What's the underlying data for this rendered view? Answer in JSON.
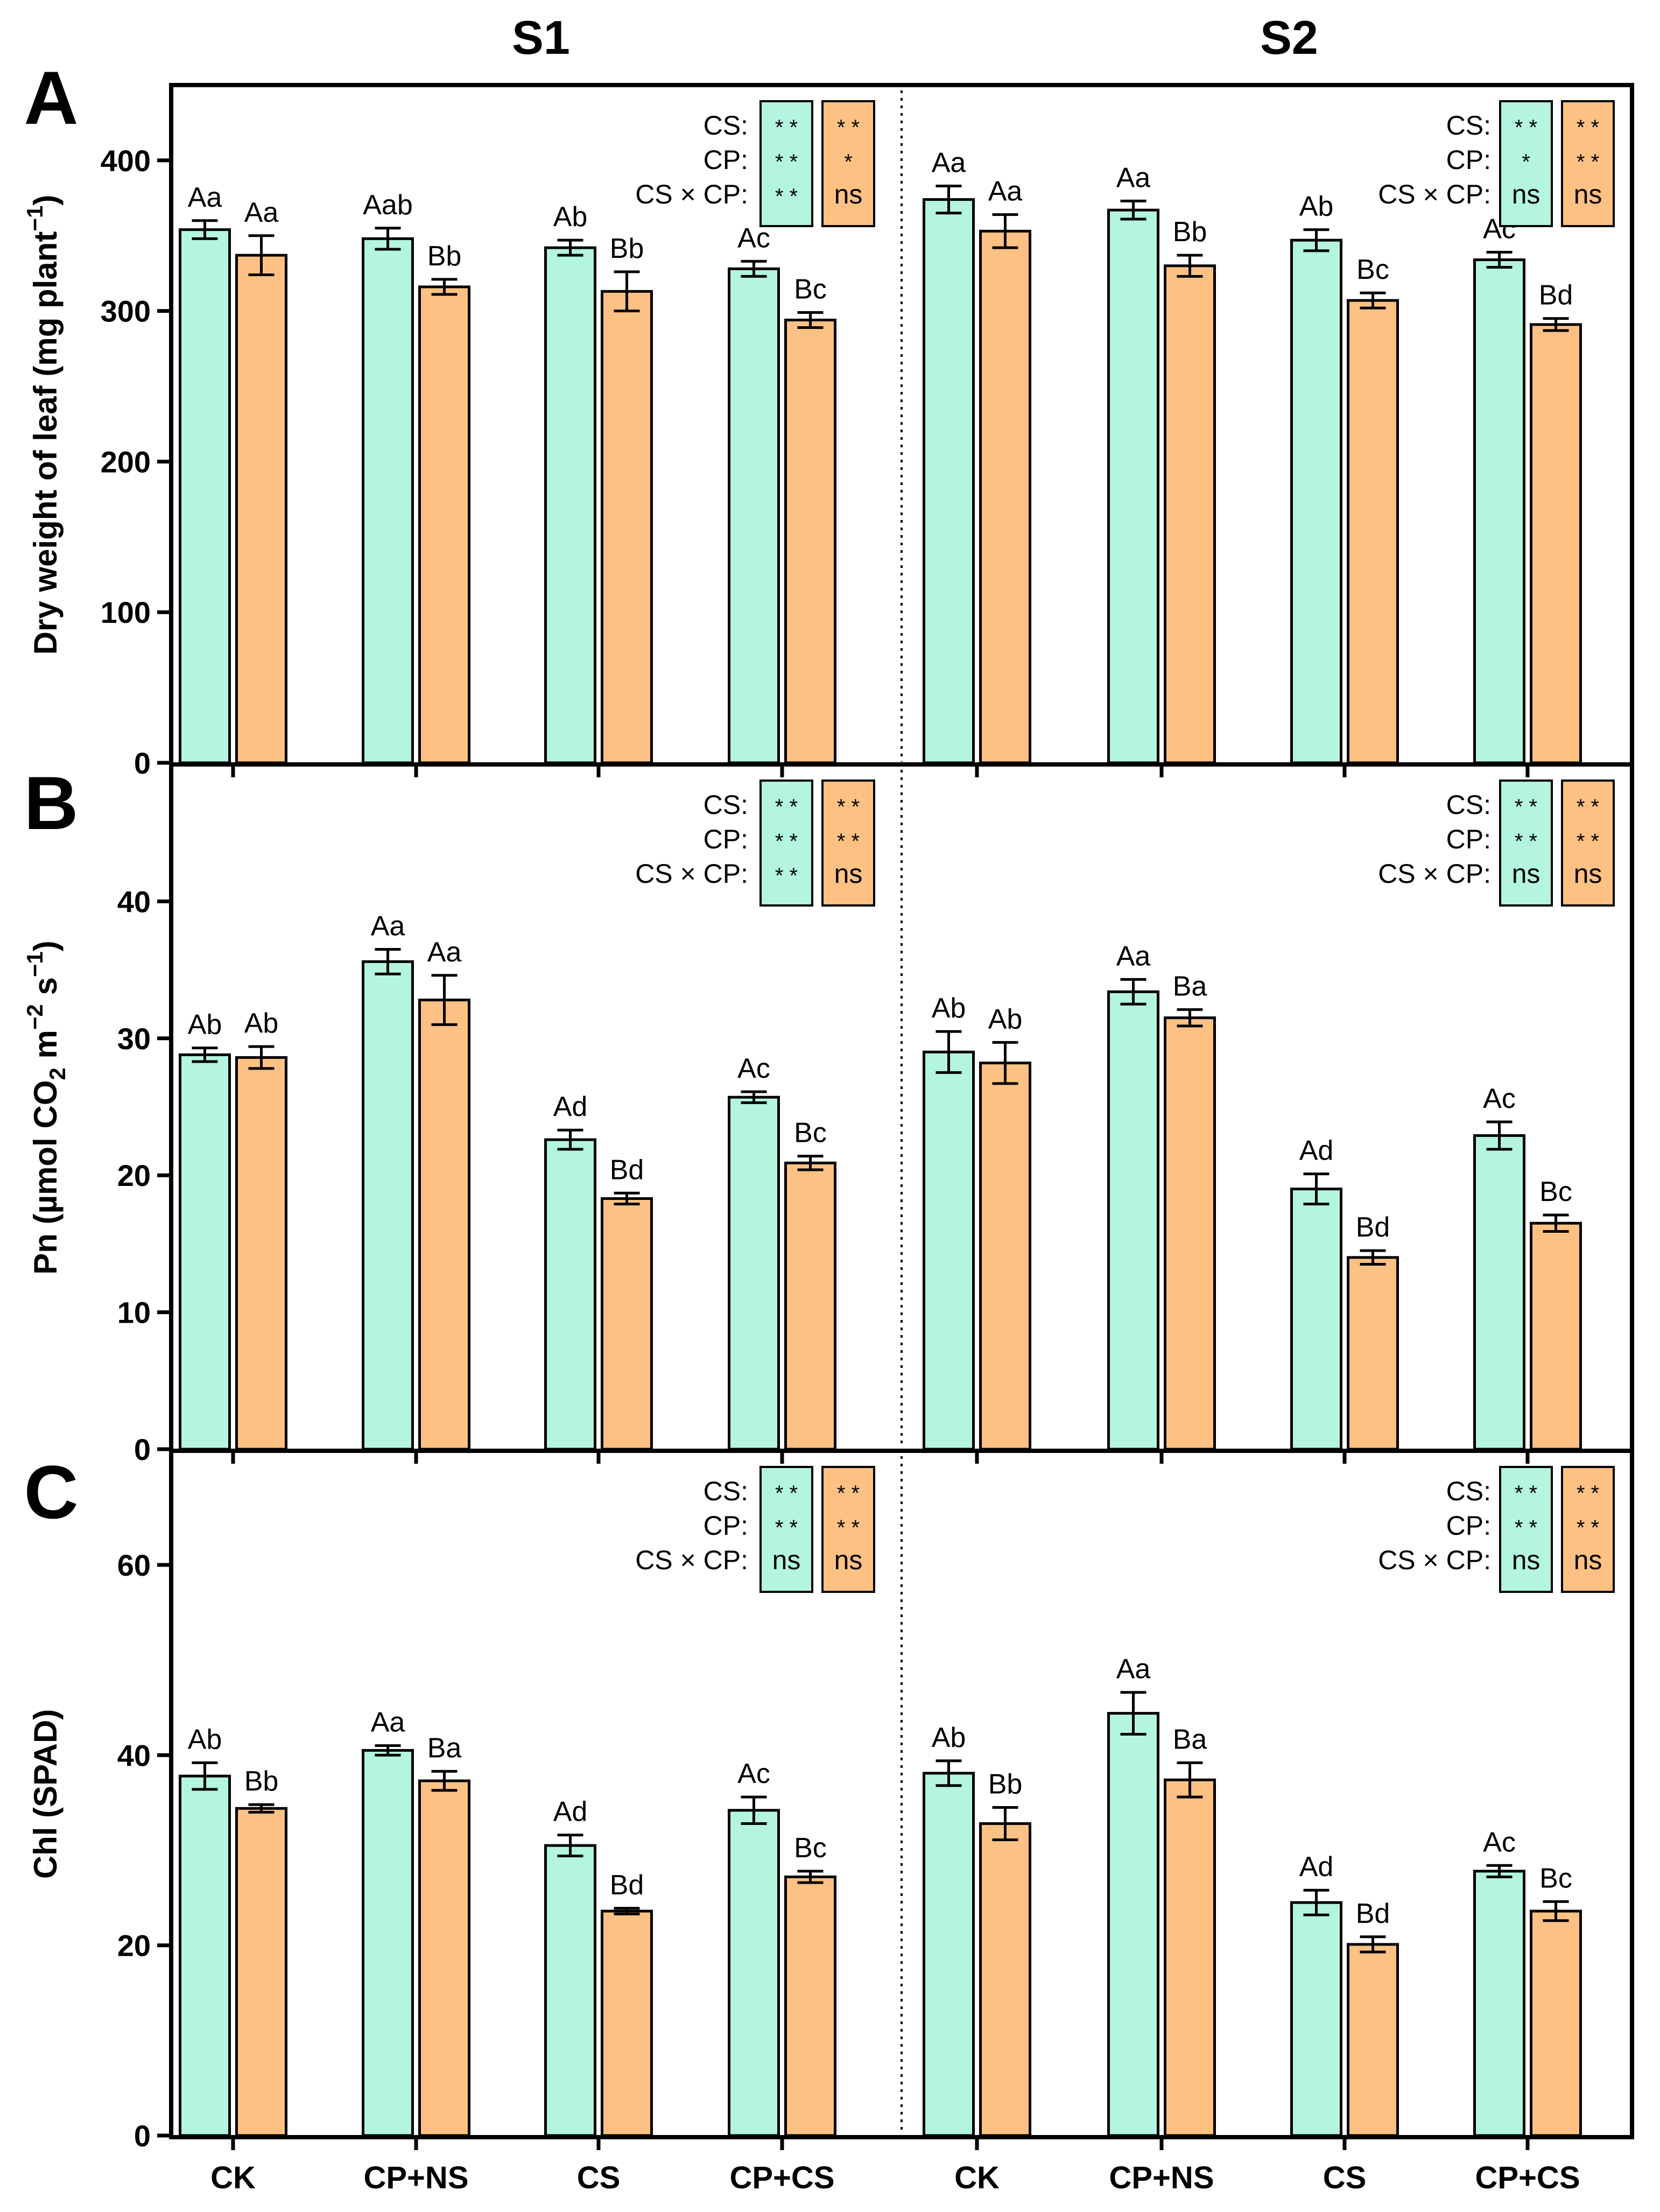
{
  "figure": {
    "series_colors": {
      "CK_group_teal": "#b3f5de",
      "orange": "#fec184"
    },
    "season_labels": [
      "S1",
      "S2"
    ],
    "x_categories": [
      "CK",
      "CP+NS",
      "CS",
      "CP+CS",
      "CK",
      "CP+NS",
      "CS",
      "CP+CS"
    ]
  },
  "chart_data": [
    {
      "type": "bar",
      "panel": "A",
      "ylabel_main": "Dry weight of leaf (mg plant",
      "ylabel_sup": "−1",
      "ylabel_end": ")",
      "ylim": [
        0,
        450
      ],
      "yticks": [
        0,
        100,
        200,
        300,
        400
      ],
      "categories": [
        "CK",
        "CP+NS",
        "CS",
        "CP+CS",
        "CK",
        "CP+NS",
        "CS",
        "CP+CS"
      ],
      "series": [
        {
          "name": "teal",
          "color": "#b3f5de",
          "values": [
            354,
            348,
            342,
            328,
            374,
            367,
            347,
            334
          ],
          "errors": [
            6,
            7,
            5,
            5,
            9,
            6,
            7,
            5
          ],
          "labels": [
            "Aa",
            "Aab",
            "Ab",
            "Ac",
            "Aa",
            "Aa",
            "Ab",
            "Ac"
          ]
        },
        {
          "name": "orange",
          "color": "#fec184",
          "values": [
            337,
            316,
            313,
            294,
            353,
            330,
            307,
            291
          ],
          "errors": [
            13,
            5,
            13,
            5,
            11,
            7,
            5,
            4
          ],
          "labels": [
            "Aa",
            "Bb",
            "Bb",
            "Bc",
            "Aa",
            "Bb",
            "Bc",
            "Bd"
          ]
        }
      ],
      "stats": {
        "row_labels": [
          "CS:",
          "CP:",
          "CS × CP:"
        ],
        "S1": {
          "teal": [
            "* *",
            "* *",
            "* *"
          ],
          "orange": [
            "* *",
            "*",
            "ns"
          ]
        },
        "S2": {
          "teal": [
            "* *",
            "*",
            "ns"
          ],
          "orange": [
            "* *",
            "* *",
            "ns"
          ]
        }
      }
    },
    {
      "type": "bar",
      "panel": "B",
      "ylabel_parts": [
        "Pn (µmol CO",
        "2",
        " m",
        "−2",
        " s",
        "−1",
        ")"
      ],
      "ylim": [
        0,
        50
      ],
      "yticks": [
        0,
        10,
        20,
        30,
        40
      ],
      "categories": [
        "CK",
        "CP+NS",
        "CS",
        "CP+CS",
        "CK",
        "CP+NS",
        "CS",
        "CP+CS"
      ],
      "series": [
        {
          "name": "teal",
          "color": "#b3f5de",
          "values": [
            28.8,
            35.6,
            22.6,
            25.7,
            29.0,
            33.4,
            19.0,
            22.9
          ],
          "errors": [
            0.5,
            0.9,
            0.7,
            0.4,
            1.5,
            0.9,
            1.1,
            1.0
          ],
          "labels": [
            "Ab",
            "Aa",
            "Ad",
            "Ac",
            "Ab",
            "Aa",
            "Ad",
            "Ac"
          ]
        },
        {
          "name": "orange",
          "color": "#fec184",
          "values": [
            28.6,
            32.8,
            18.3,
            20.9,
            28.2,
            31.5,
            14.0,
            16.5
          ],
          "errors": [
            0.8,
            1.8,
            0.4,
            0.5,
            1.5,
            0.6,
            0.5,
            0.6
          ],
          "labels": [
            "Ab",
            "Aa",
            "Bd",
            "Bc",
            "Ab",
            "Ba",
            "Bd",
            "Bc"
          ]
        }
      ],
      "stats": {
        "row_labels": [
          "CS:",
          "CP:",
          "CS × CP:"
        ],
        "S1": {
          "teal": [
            "* *",
            "* *",
            "* *"
          ],
          "orange": [
            "* *",
            "* *",
            "ns"
          ]
        },
        "S2": {
          "teal": [
            "* *",
            "* *",
            "ns"
          ],
          "orange": [
            "* *",
            "* *",
            "ns"
          ]
        }
      }
    },
    {
      "type": "bar",
      "panel": "C",
      "ylabel_main": "Chl (SPAD)",
      "ylim": [
        0,
        72
      ],
      "yticks": [
        0,
        20,
        40,
        60
      ],
      "categories": [
        "CK",
        "CP+NS",
        "CS",
        "CP+CS",
        "CK",
        "CP+NS",
        "CS",
        "CP+CS"
      ],
      "series": [
        {
          "name": "teal",
          "color": "#b3f5de",
          "values": [
            37.8,
            40.5,
            30.5,
            34.2,
            38.1,
            44.4,
            24.5,
            27.8
          ],
          "errors": [
            1.4,
            0.5,
            1.1,
            1.4,
            1.3,
            2.2,
            1.3,
            0.6
          ],
          "labels": [
            "Ab",
            "Aa",
            "Ad",
            "Ac",
            "Ab",
            "Aa",
            "Ad",
            "Ac"
          ]
        },
        {
          "name": "orange",
          "color": "#fec184",
          "values": [
            34.4,
            37.3,
            23.6,
            27.2,
            32.8,
            37.4,
            20.1,
            23.6
          ],
          "errors": [
            0.4,
            1.0,
            0.3,
            0.6,
            1.7,
            1.8,
            0.8,
            1.0
          ],
          "labels": [
            "Bb",
            "Ba",
            "Bd",
            "Bc",
            "Bb",
            "Ba",
            "Bd",
            "Bc"
          ]
        }
      ],
      "stats": {
        "row_labels": [
          "CS:",
          "CP:",
          "CS × CP:"
        ],
        "S1": {
          "teal": [
            "* *",
            "* *",
            "ns"
          ],
          "orange": [
            "* *",
            "* *",
            "ns"
          ]
        },
        "S2": {
          "teal": [
            "* *",
            "* *",
            "ns"
          ],
          "orange": [
            "* *",
            "* *",
            "ns"
          ]
        }
      }
    }
  ]
}
